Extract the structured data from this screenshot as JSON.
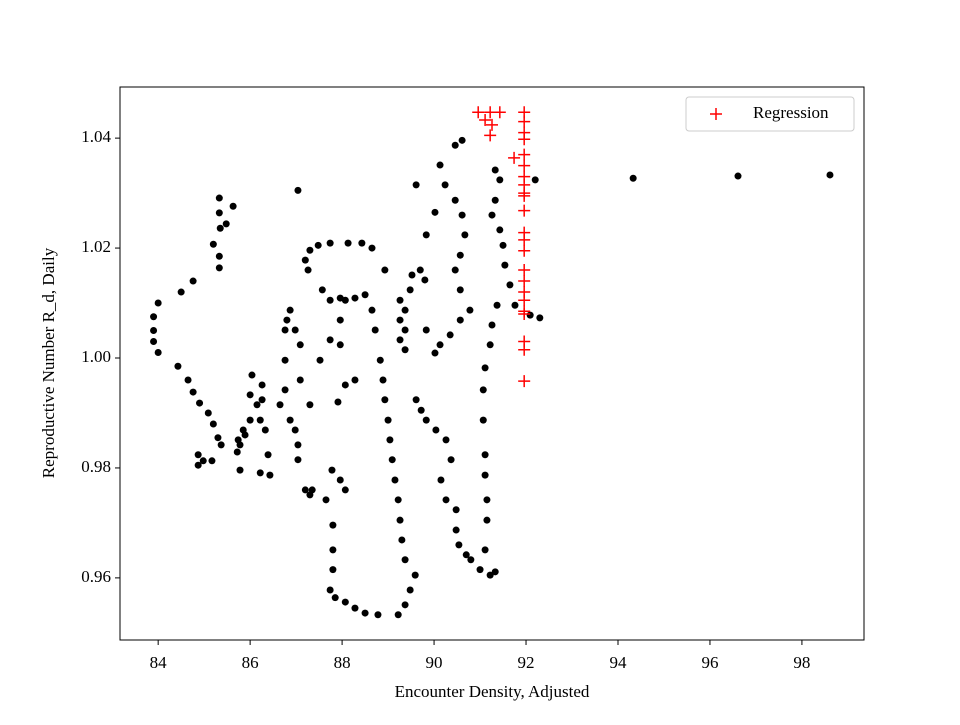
{
  "chart_data": {
    "type": "scatter",
    "xlabel": "Encounter Density, Adjusted",
    "ylabel": "Reproductive Number R_d, Daily",
    "xlim": [
      83.17,
      99.35
    ],
    "ylim": [
      0.9487,
      1.0493
    ],
    "xticks": [
      84,
      86,
      88,
      90,
      92,
      94,
      96,
      98
    ],
    "yticks": [
      0.96,
      0.98,
      {
        "value": 1.0,
        "label": "1.00"
      },
      1.02,
      1.04
    ],
    "legend": "upper right",
    "series": [
      {
        "color": "#000000",
        "marker": "o",
        "x": [
          83.9,
          83.9,
          83.9,
          84.0,
          84.0,
          84.5,
          84.76,
          84.43,
          84.65,
          84.76,
          84.9,
          85.09,
          85.2,
          85.3,
          85.37,
          84.87,
          84.98,
          84.87,
          85.17,
          85.33,
          85.33,
          85.35,
          85.2,
          85.33,
          85.33,
          85.48,
          85.63,
          85.74,
          85.85,
          85.78,
          85.89,
          86.0,
          85.72,
          85.78,
          86.0,
          86.04,
          86.15,
          86.26,
          86.22,
          86.33,
          86.22,
          86.43,
          86.39,
          86.26,
          86.65,
          86.76,
          86.87,
          86.98,
          87.04,
          87.04,
          87.09,
          86.76,
          86.76,
          86.8,
          86.87,
          86.98,
          87.09,
          87.04,
          87.2,
          87.26,
          87.3,
          87.48,
          87.74,
          87.57,
          87.74,
          87.96,
          88.13,
          88.43,
          88.65,
          88.93,
          87.3,
          87.52,
          87.74,
          87.96,
          88.07,
          88.28,
          87.96,
          88.07,
          87.91,
          88.28,
          87.2,
          87.3,
          87.35,
          87.65,
          87.78,
          87.96,
          88.07,
          87.8,
          87.8,
          87.8,
          87.74,
          87.85,
          88.07,
          88.28,
          88.5,
          88.78,
          89.22,
          89.37,
          89.48,
          89.59,
          89.37,
          89.3,
          89.26,
          89.22,
          89.15,
          89.09,
          89.04,
          89.0,
          88.93,
          88.89,
          88.83,
          88.72,
          88.65,
          88.5,
          89.26,
          89.26,
          89.26,
          89.37,
          89.37,
          89.37,
          89.48,
          89.52,
          89.7,
          89.8,
          89.61,
          89.83,
          89.83,
          89.61,
          89.72,
          89.83,
          90.04,
          90.26,
          90.37,
          90.15,
          90.26,
          90.48,
          90.48,
          90.54,
          90.7,
          90.8,
          91.0,
          91.22,
          91.33,
          91.11,
          91.15,
          91.15,
          91.11,
          91.11,
          91.07,
          91.07,
          91.11,
          91.22,
          91.26,
          91.37,
          90.78,
          90.57,
          90.35,
          90.13,
          90.02,
          90.57,
          90.46,
          90.57,
          90.67,
          90.61,
          90.46,
          90.24,
          90.13,
          90.46,
          90.61,
          90.02,
          91.33,
          91.43,
          91.33,
          91.26,
          91.43,
          91.5,
          91.54,
          91.65,
          91.76,
          92.2,
          92.3,
          92.09,
          94.33,
          96.61,
          98.61
        ],
        "values": [
          1.0075,
          1.005,
          1.003,
          1.001,
          1.01,
          1.012,
          1.014,
          0.9985,
          0.996,
          0.9938,
          0.9918,
          0.99,
          0.988,
          0.9855,
          0.9842,
          0.9824,
          0.9813,
          0.9805,
          0.9813,
          1.0291,
          1.0264,
          1.0236,
          1.0207,
          1.0185,
          1.0164,
          1.0244,
          1.0276,
          0.9851,
          0.9869,
          0.9842,
          0.986,
          0.9887,
          0.9829,
          0.9796,
          0.9933,
          0.9969,
          0.9915,
          0.9951,
          0.9887,
          0.9869,
          0.9791,
          0.9787,
          0.9824,
          0.9924,
          0.9915,
          0.9942,
          0.9887,
          0.9869,
          0.9842,
          0.9815,
          0.996,
          0.9996,
          1.0051,
          1.0069,
          1.0087,
          1.0051,
          1.0024,
          1.0305,
          1.0178,
          1.016,
          1.0196,
          1.0205,
          1.0209,
          1.0124,
          1.0105,
          1.0109,
          1.0209,
          1.0209,
          1.02,
          1.016,
          0.9915,
          0.9996,
          1.0033,
          1.0069,
          1.0105,
          1.0109,
          1.0024,
          0.9951,
          0.992,
          0.996,
          0.976,
          0.9751,
          0.976,
          0.9742,
          0.9796,
          0.9778,
          0.976,
          0.9696,
          0.9651,
          0.9615,
          0.9578,
          0.9564,
          0.9556,
          0.9545,
          0.9536,
          0.9533,
          0.9533,
          0.9551,
          0.9578,
          0.9605,
          0.9633,
          0.9669,
          0.9705,
          0.9742,
          0.9778,
          0.9815,
          0.9851,
          0.9887,
          0.9924,
          0.996,
          0.9996,
          1.0051,
          1.0087,
          1.0115,
          1.0105,
          1.0069,
          1.0033,
          1.0015,
          1.0051,
          1.0087,
          1.0124,
          1.0151,
          1.016,
          1.0142,
          1.0315,
          1.0224,
          1.0051,
          0.9924,
          0.9905,
          0.9887,
          0.9869,
          0.9851,
          0.9815,
          0.9778,
          0.9742,
          0.9724,
          0.9687,
          0.966,
          0.9642,
          0.9633,
          0.9615,
          0.9605,
          0.9611,
          0.9651,
          0.9705,
          0.9742,
          0.9787,
          0.9824,
          0.9887,
          0.9942,
          0.9982,
          1.0024,
          1.006,
          1.0096,
          1.0087,
          1.0069,
          1.0042,
          1.0024,
          1.0009,
          1.0124,
          1.016,
          1.0187,
          1.0224,
          1.026,
          1.0287,
          1.0315,
          1.0351,
          1.0387,
          1.0396,
          1.0265,
          1.0342,
          1.0324,
          1.0287,
          1.026,
          1.0233,
          1.0205,
          1.0169,
          1.0133,
          1.0096,
          1.0324,
          1.0073,
          1.0078,
          1.0327,
          1.0331,
          1.0333
        ]
      },
      {
        "name": "Regression",
        "color": "#ff0000",
        "marker": "+",
        "x": [
          90.96,
          91.11,
          91.22,
          91.26,
          91.22,
          91.43,
          91.74,
          91.96,
          91.96,
          91.96,
          91.96,
          91.96,
          91.96,
          91.96,
          91.96,
          91.96,
          91.96,
          91.96,
          91.96,
          91.96,
          91.96,
          91.96,
          91.96,
          91.96,
          91.96,
          91.96,
          91.96,
          91.96,
          91.96,
          91.96
        ],
        "values": [
          1.0447,
          1.0433,
          1.0447,
          1.0424,
          1.0405,
          1.0447,
          1.0364,
          1.0447,
          1.043,
          1.041,
          1.0398,
          1.037,
          1.035,
          1.033,
          1.0315,
          1.03,
          1.0295,
          1.0268,
          1.0228,
          1.0215,
          1.0195,
          1.016,
          1.014,
          1.012,
          1.0105,
          1.0085,
          1.008,
          1.003,
          1.0015,
          0.9958
        ]
      }
    ]
  }
}
